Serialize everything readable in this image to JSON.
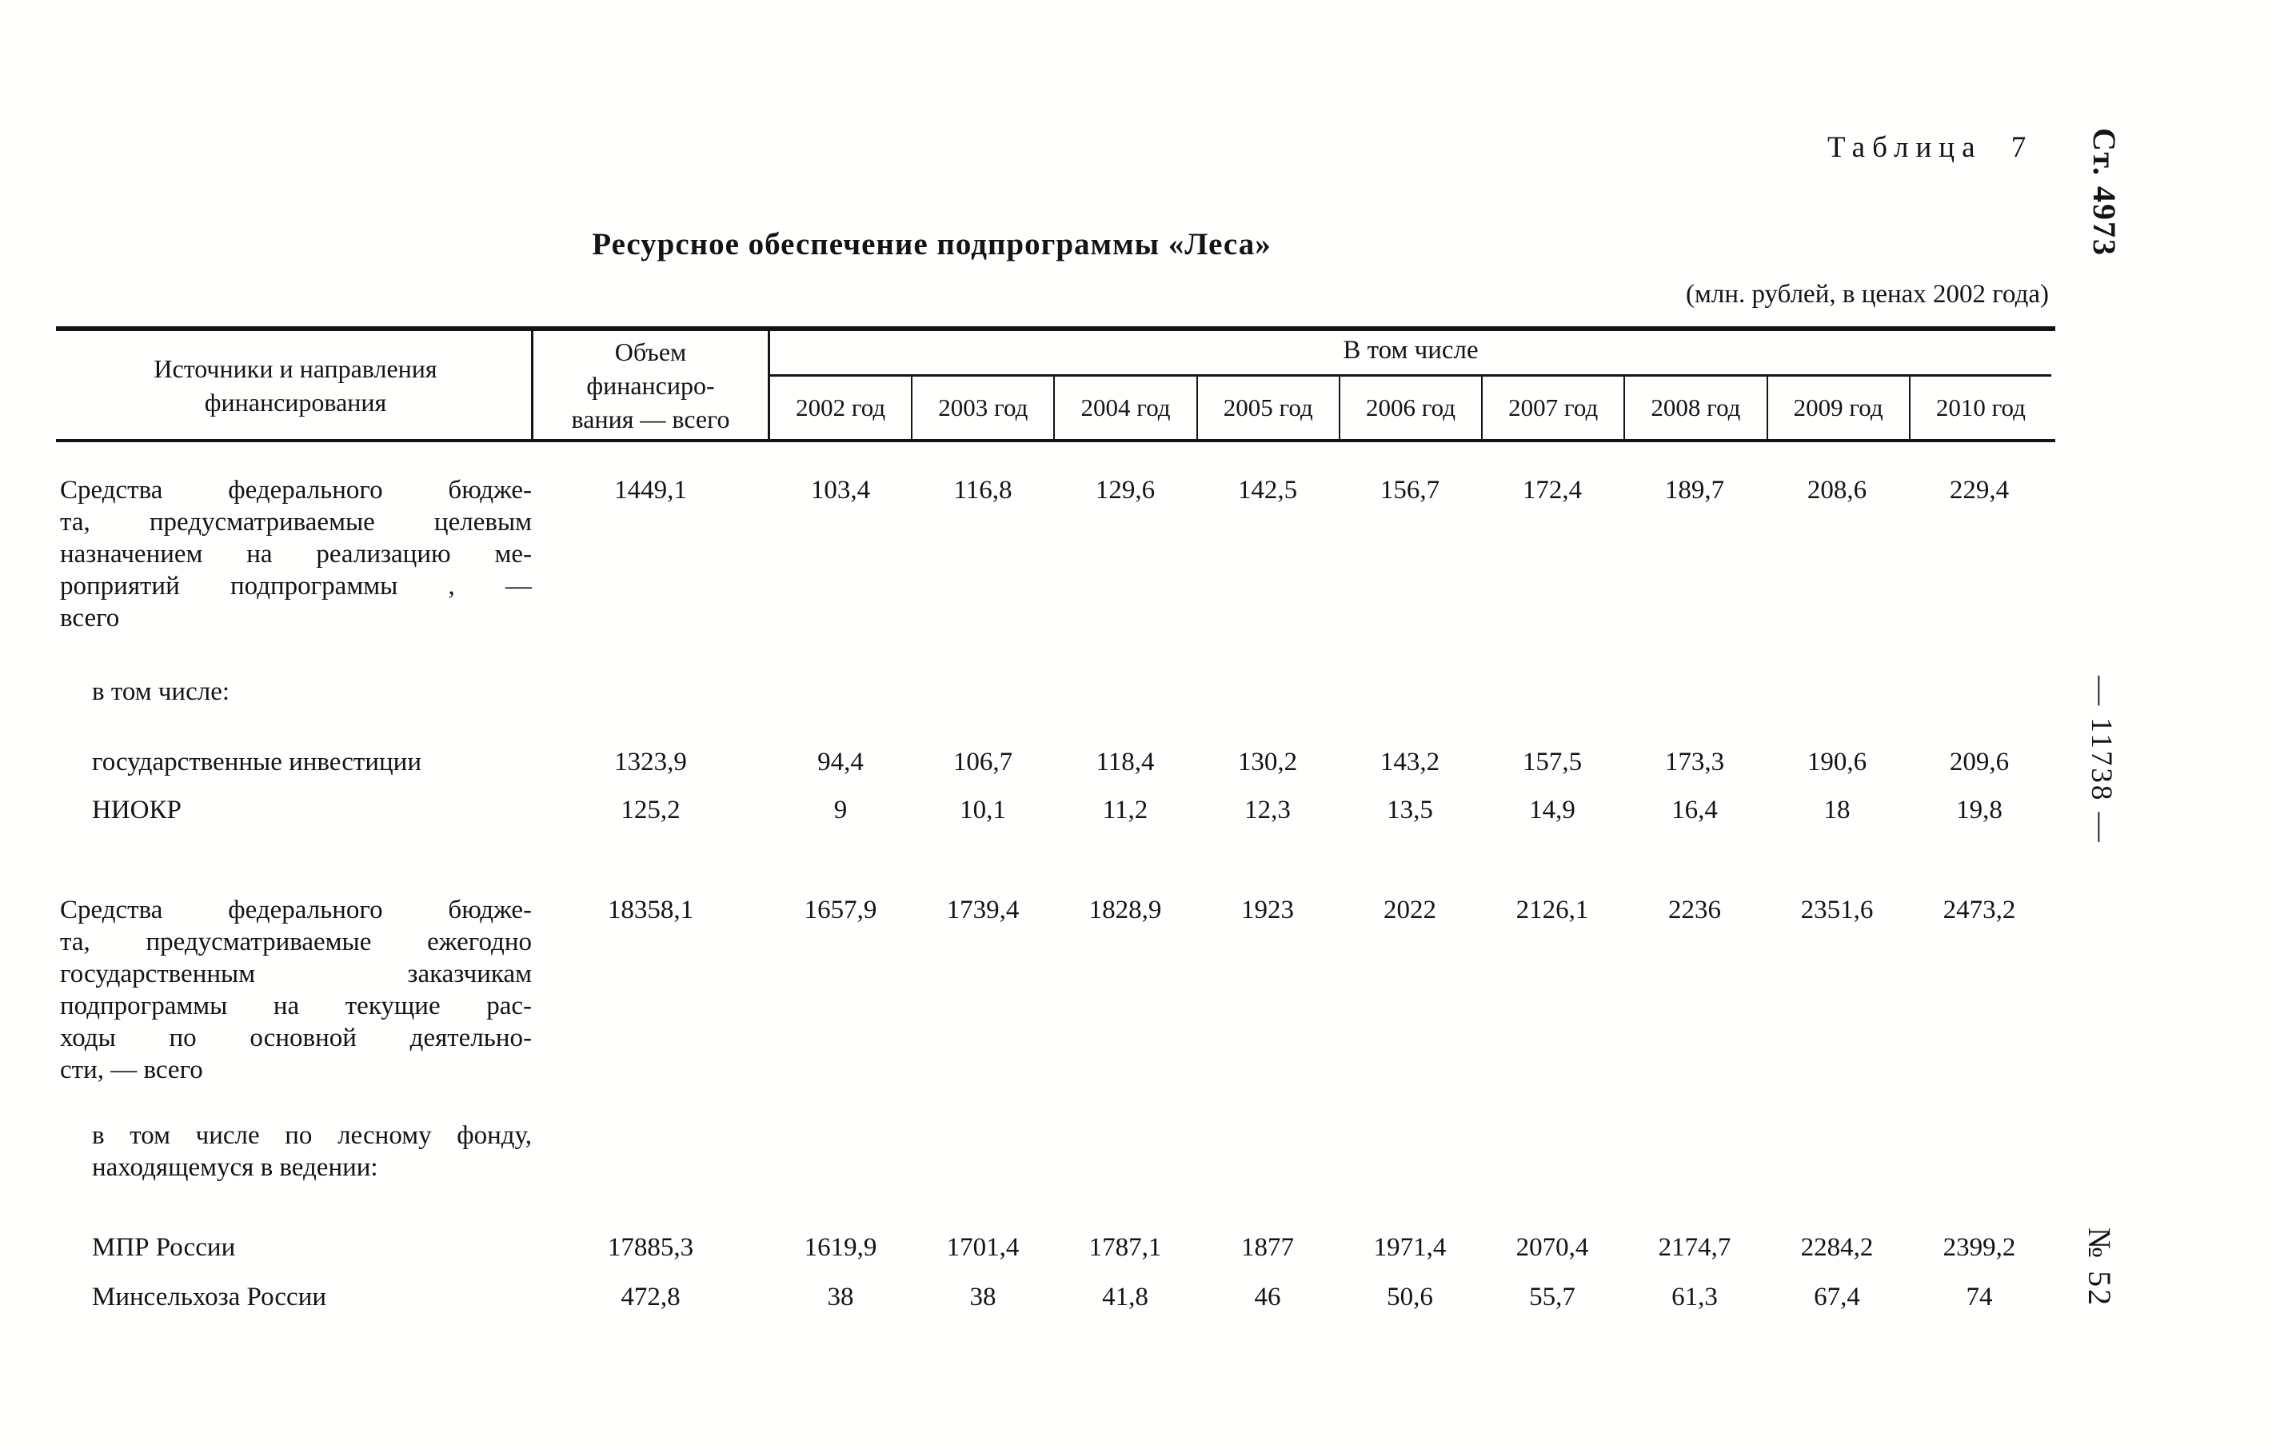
{
  "page": {
    "table_number_label": "Таблица 7",
    "article_label": "Ст. 4973",
    "sheet_number_label": "— 11738 —",
    "issue_label": "№ 52",
    "title": "Ресурсное обеспечение подпрограммы «Леса»",
    "units_note": "(млн. рублей, в ценах 2002 года)"
  },
  "table": {
    "header": {
      "sources_col_lines": "Источники и направления\nфинансирования",
      "total_col_lines": "Объем\nфинансиро-\nвания — всего",
      "group_label": "В том числе",
      "years": [
        "2002 год",
        "2003 год",
        "2004 год",
        "2005 год",
        "2006 год",
        "2007 год",
        "2008 год",
        "2009 год",
        "2010 год"
      ]
    },
    "rows": [
      {
        "type": "data",
        "indent": 0,
        "lines": [
          "Средства федерального бюдже-",
          "та, предусматриваемые целевым",
          "назначением на реализацию ме-",
          "роприятий подпрограммы , —",
          "всего"
        ],
        "values": [
          "1449,1",
          "103,4",
          "116,8",
          "129,6",
          "142,5",
          "156,7",
          "172,4",
          "189,7",
          "208,6",
          "229,4"
        ]
      },
      {
        "type": "section",
        "indent": 1,
        "lines": [
          "в том числе:"
        ],
        "values": []
      },
      {
        "type": "data",
        "indent": 1,
        "lines": [
          "государственные инвестиции"
        ],
        "values": [
          "1323,9",
          "94,4",
          "106,7",
          "118,4",
          "130,2",
          "143,2",
          "157,5",
          "173,3",
          "190,6",
          "209,6"
        ]
      },
      {
        "type": "data",
        "indent": 1,
        "lines": [
          "НИОКР"
        ],
        "values": [
          "125,2",
          "9",
          "10,1",
          "11,2",
          "12,3",
          "13,5",
          "14,9",
          "16,4",
          "18",
          "19,8"
        ]
      },
      {
        "type": "data",
        "indent": 0,
        "lines": [
          "Средства федерального бюдже-",
          "та, предусматриваемые ежегодно",
          "государственным заказчикам",
          "подпрограммы на текущие рас-",
          "ходы по основной деятельно-",
          "сти, — всего"
        ],
        "values": [
          "18358,1",
          "1657,9",
          "1739,4",
          "1828,9",
          "1923",
          "2022",
          "2126,1",
          "2236",
          "2351,6",
          "2473,2"
        ]
      },
      {
        "type": "section",
        "indent": 1,
        "lines": [
          "в том числе по лесному фонду,",
          "находящемуся в ведении:"
        ],
        "values": []
      },
      {
        "type": "data",
        "indent": 1,
        "lines": [
          "МПР России"
        ],
        "values": [
          "17885,3",
          "1619,9",
          "1701,4",
          "1787,1",
          "1877",
          "1971,4",
          "2070,4",
          "2174,7",
          "2284,2",
          "2399,2"
        ]
      },
      {
        "type": "data",
        "indent": 1,
        "lines": [
          "Минсельхоза России"
        ],
        "values": [
          "472,8",
          "38",
          "38",
          "41,8",
          "46",
          "50,6",
          "55,7",
          "61,3",
          "67,4",
          "74"
        ]
      }
    ]
  }
}
